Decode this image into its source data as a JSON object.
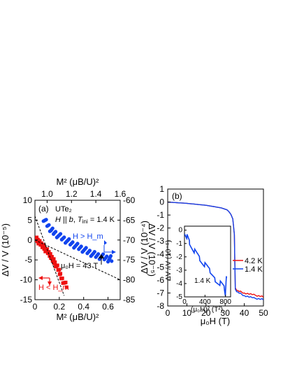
{
  "colors": {
    "red": "#ee1111",
    "blue": "#1144ee",
    "black": "#000000"
  },
  "panel_a": {
    "label": "(a)",
    "sample": "UTe₂",
    "cond": "H || b, T_ini = 1.4 K",
    "cond_parts": {
      "h": "H",
      "par": " || ",
      "b": "b",
      "sep": ", ",
      "t": "T",
      "ini": "ini",
      "val": " = 1.4 K"
    },
    "annot_field": "μ₀H = 43 T",
    "annot_blue": "H > H_m",
    "annot_red": "H < H_m",
    "top_xlabel": "M² (μB/U)²",
    "bottom_xlabel": "M² (μB/U)²",
    "left_ylabel": "ΔV / V (10⁻⁵)",
    "right_ylabel": "ΔV / V (10⁻⁵)",
    "top_ticks": [
      "1.0",
      "1.2",
      "1.4",
      "1.6"
    ],
    "bottom_ticks": [
      "0",
      "0.2",
      "0.4",
      "0.6"
    ],
    "left_ticks": [
      "5",
      "0",
      "-5",
      "-10",
      "-15",
      "10"
    ],
    "right_ticks": [
      "-60",
      "-65",
      "-70",
      "-75",
      "-80",
      "-85"
    ]
  },
  "panel_b": {
    "label": "(b)",
    "xlabel": "μ₀H (T)",
    "ylabel": "ΔV / V (10⁻⁴)",
    "x_ticks": [
      "0",
      "10",
      "20",
      "30",
      "40",
      "50"
    ],
    "y_ticks": [
      "1",
      "0",
      "-1",
      "-2",
      "-3",
      "-4",
      "-5",
      "-6",
      "-7",
      "-8"
    ],
    "legend": [
      "4.2 K",
      "1.4 K"
    ],
    "inset": {
      "label": "1.4 K",
      "x_ticks": [
        "0",
        "400",
        "800"
      ],
      "y_ticks": [
        "0",
        "-1",
        "-2",
        "-3",
        "-4",
        "-5"
      ],
      "xlabel": "(μ₀H)² (T²)",
      "ylabel": "ΔV / V (10⁻⁵)"
    }
  },
  "chart_data": [
    {
      "type": "scatter",
      "panel": "a",
      "xlabel": "M² (μB/U)²",
      "ylabel": "ΔV / V (10⁻⁵)",
      "xlim": [
        0,
        0.7
      ],
      "ylim": [
        -15,
        10
      ],
      "top_axis": {
        "label": "M² (μB/U)²",
        "lim": [
          0.9,
          1.6
        ]
      },
      "right_axis": {
        "label": "ΔV / V (10⁻⁵)",
        "lim": [
          -85,
          -60
        ]
      },
      "series": [
        {
          "name": "H < H_m",
          "color": "red",
          "axis": "bottom-left",
          "points": [
            [
              0.0,
              0.5
            ],
            [
              0.02,
              0.0
            ],
            [
              0.03,
              -0.5
            ],
            [
              0.05,
              -1.0
            ],
            [
              0.07,
              -1.6
            ],
            [
              0.08,
              -2.2
            ],
            [
              0.1,
              -2.8
            ],
            [
              0.12,
              -3.5
            ],
            [
              0.13,
              -4.2
            ],
            [
              0.15,
              -4.9
            ],
            [
              0.16,
              -5.7
            ],
            [
              0.18,
              -6.6
            ],
            [
              0.2,
              -7.8
            ],
            [
              0.21,
              -9.0
            ],
            [
              0.23,
              -10.3
            ],
            [
              0.26,
              -11.5
            ]
          ]
        },
        {
          "name": "H > H_m",
          "color": "blue",
          "axis": "top-right",
          "points": [
            [
              0.97,
              -64.5
            ],
            [
              1.0,
              -66.0
            ],
            [
              1.03,
              -67.4
            ],
            [
              1.06,
              -68.2
            ],
            [
              1.1,
              -69.0
            ],
            [
              1.14,
              -69.8
            ],
            [
              1.18,
              -70.5
            ],
            [
              1.22,
              -71.2
            ],
            [
              1.26,
              -71.8
            ],
            [
              1.3,
              -72.4
            ],
            [
              1.34,
              -73.0
            ],
            [
              1.38,
              -73.6
            ],
            [
              1.42,
              -74.0
            ],
            [
              1.46,
              -74.3
            ],
            [
              1.5,
              -74.7
            ],
            [
              1.53,
              -74.8
            ]
          ]
        }
      ],
      "fit_lines": [
        {
          "axis": "bottom-left",
          "points": [
            [
              0.0,
              0.0
            ],
            [
              0.35,
              -5.0
            ],
            [
              0.7,
              -10.0
            ]
          ]
        },
        {
          "axis": "bottom-left",
          "points": [
            [
              0.0,
              6.0
            ],
            [
              0.24,
              -14.0
            ]
          ]
        }
      ]
    },
    {
      "type": "line",
      "panel": "b",
      "xlabel": "μ₀H (T)",
      "ylabel": "ΔV / V (10⁻⁴)",
      "xlim": [
        0,
        50
      ],
      "ylim": [
        -8,
        1
      ],
      "series": [
        {
          "name": "4.2 K",
          "color": "red",
          "x": [
            0,
            10,
            20,
            28,
            31,
            32,
            33,
            34,
            34.8,
            35.3,
            36,
            40,
            45,
            50
          ],
          "y": [
            0,
            -0.1,
            -0.25,
            -0.45,
            -0.6,
            -0.75,
            -0.95,
            -1.3,
            -2.5,
            -6.6,
            -6.8,
            -7.0,
            -7.15,
            -7.3
          ]
        },
        {
          "name": "1.4 K",
          "color": "blue",
          "x": [
            0,
            10,
            20,
            28,
            31,
            32,
            33,
            34,
            34.8,
            35.3,
            36,
            40,
            45,
            50
          ],
          "y": [
            0,
            -0.1,
            -0.25,
            -0.45,
            -0.6,
            -0.75,
            -0.95,
            -1.3,
            -2.5,
            -6.7,
            -6.9,
            -7.2,
            -7.4,
            -7.5
          ]
        }
      ],
      "inset": {
        "type": "line",
        "xlabel": "(μ₀H)² (T²)",
        "ylabel": "ΔV / V (10⁻⁵)",
        "xlim": [
          0,
          900
        ],
        "ylim": [
          -5,
          0.3
        ],
        "series": [
          {
            "name": "1.4 K",
            "color": "blue",
            "x": [
              0,
              50,
              100,
              200,
              300,
              400,
              500,
              600,
              700,
              780,
              800,
              820
            ],
            "y": [
              0,
              -0.4,
              -0.9,
              -1.6,
              -2.2,
              -2.7,
              -3.2,
              -3.6,
              -3.9,
              -4.3,
              -4.8,
              -3.5
            ]
          }
        ]
      }
    }
  ]
}
